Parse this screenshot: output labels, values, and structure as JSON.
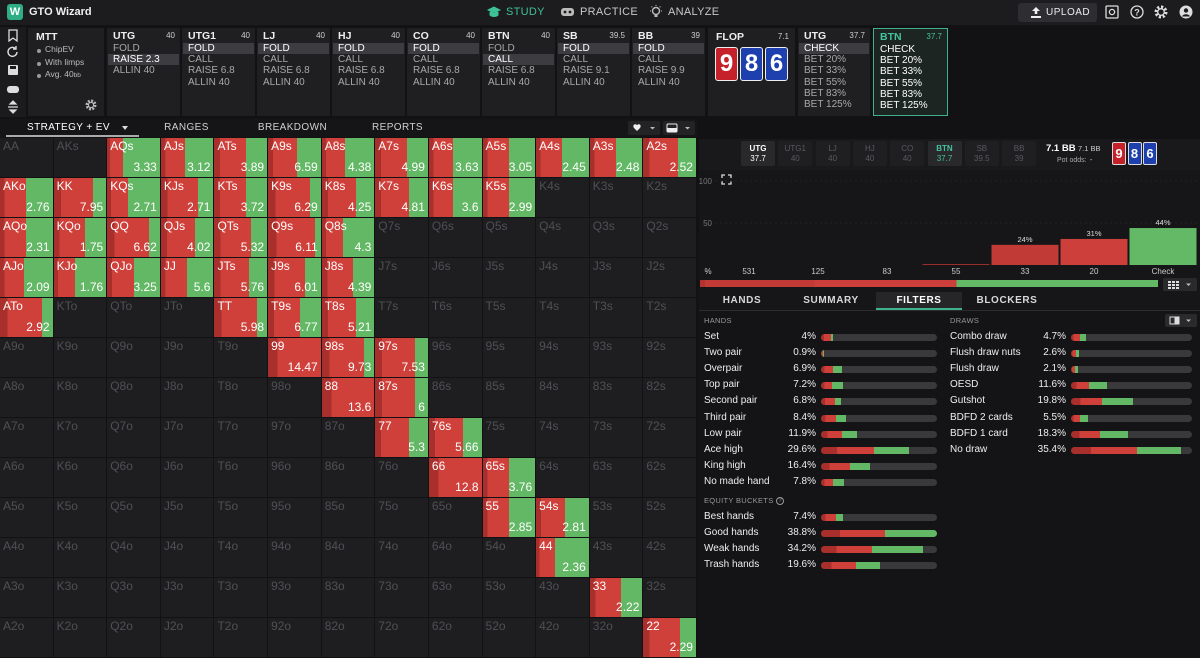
{
  "header": {
    "logo": "GTO Wizard",
    "nav": [
      "STUDY",
      "PRACTICE",
      "ANALYZE"
    ],
    "nav_active": 0,
    "upload": "UPLOAD"
  },
  "settings": {
    "title": "MTT",
    "items": [
      "ChipEV",
      "With limps"
    ],
    "avg": {
      "label": "Avg. 40",
      "unit": "bb"
    }
  },
  "preflop": [
    {
      "name": "UTG",
      "stack": 40,
      "actions": [
        "FOLD",
        "RAISE 2.3",
        "ALLIN 40"
      ],
      "selected": 1
    },
    {
      "name": "UTG1",
      "stack": 40,
      "actions": [
        "FOLD",
        "CALL",
        "RAISE 6.8",
        "ALLIN 40"
      ],
      "selected": 0
    },
    {
      "name": "LJ",
      "stack": 40,
      "actions": [
        "FOLD",
        "CALL",
        "RAISE 6.8",
        "ALLIN 40"
      ],
      "selected": 0
    },
    {
      "name": "HJ",
      "stack": 40,
      "actions": [
        "FOLD",
        "CALL",
        "RAISE 6.8",
        "ALLIN 40"
      ],
      "selected": 0
    },
    {
      "name": "CO",
      "stack": 40,
      "actions": [
        "FOLD",
        "CALL",
        "RAISE 6.8",
        "ALLIN 40"
      ],
      "selected": 0
    },
    {
      "name": "BTN",
      "stack": 40,
      "actions": [
        "FOLD",
        "CALL",
        "RAISE 6.8",
        "ALLIN 40"
      ],
      "selected": 1
    },
    {
      "name": "SB",
      "stack": 39.5,
      "actions": [
        "FOLD",
        "CALL",
        "RAISE 9.1",
        "ALLIN 40"
      ],
      "selected": 0
    },
    {
      "name": "BB",
      "stack": 39,
      "actions": [
        "FOLD",
        "CALL",
        "RAISE 9.9",
        "ALLIN 40"
      ],
      "selected": 0
    }
  ],
  "flop": {
    "name": "FLOP",
    "pot": 7.1,
    "cards": [
      {
        "rank": "9",
        "color": "#c4212b"
      },
      {
        "rank": "8",
        "color": "#1e3fae"
      },
      {
        "rank": "6",
        "color": "#1e3fae"
      }
    ]
  },
  "postflop": [
    {
      "name": "UTG",
      "stack": 37.7,
      "actions": [
        "CHECK",
        "BET 20%",
        "BET 33%",
        "BET 55%",
        "BET 83%",
        "BET 125%"
      ],
      "selected": 0
    },
    {
      "name": "BTN",
      "stack": 37.7,
      "actions": [
        "CHECK",
        "BET 20%",
        "BET 33%",
        "BET 55%",
        "BET 83%",
        "BET 125%"
      ],
      "selected": -1,
      "active": true
    }
  ],
  "tabs": [
    "STRATEGY + EV",
    "RANGES",
    "BREAKDOWN",
    "REPORTS"
  ],
  "tab_active": 0,
  "grid": [
    [
      {
        "hand": "AA"
      },
      {
        "hand": "AKs"
      },
      {
        "hand": "AQs",
        "ev": 3.33,
        "check": 70
      },
      {
        "hand": "AJs",
        "ev": 3.12,
        "check": 55
      },
      {
        "hand": "ATs",
        "ev": 3.89,
        "check": 40
      },
      {
        "hand": "A9s",
        "ev": 6.59,
        "check": 45
      },
      {
        "hand": "A8s",
        "ev": 4.38,
        "check": 55
      },
      {
        "hand": "A7s",
        "ev": 4.99,
        "check": 40
      },
      {
        "hand": "A6s",
        "ev": 3.63,
        "check": 55
      },
      {
        "hand": "A5s",
        "ev": 3.05,
        "check": 50
      },
      {
        "hand": "A4s",
        "ev": 2.45,
        "check": 50
      },
      {
        "hand": "A3s",
        "ev": 2.48,
        "check": 50
      },
      {
        "hand": "A2s",
        "ev": 2.52,
        "check": 35
      }
    ],
    [
      {
        "hand": "AKo",
        "ev": 2.76,
        "check": 50
      },
      {
        "hand": "KK",
        "ev": 7.95,
        "check": 25
      },
      {
        "hand": "KQs",
        "ev": 2.71,
        "check": 60
      },
      {
        "hand": "KJs",
        "ev": 2.71,
        "check": 30
      },
      {
        "hand": "KTs",
        "ev": 3.72,
        "check": 40
      },
      {
        "hand": "K9s",
        "ev": 6.29,
        "check": 20
      },
      {
        "hand": "K8s",
        "ev": 4.25,
        "check": 35
      },
      {
        "hand": "K7s",
        "ev": 4.81,
        "check": 35
      },
      {
        "hand": "K6s",
        "ev": 3.6,
        "check": 55
      },
      {
        "hand": "K5s",
        "ev": 2.99,
        "check": 50
      },
      {
        "hand": "K4s"
      },
      {
        "hand": "K3s"
      },
      {
        "hand": "K2s"
      }
    ],
    [
      {
        "hand": "AQo",
        "ev": 2.31,
        "check": 50
      },
      {
        "hand": "KQo",
        "ev": 1.75,
        "check": 40
      },
      {
        "hand": "QQ",
        "ev": 6.62,
        "check": 20
      },
      {
        "hand": "QJs",
        "ev": 4.02,
        "check": 35
      },
      {
        "hand": "QTs",
        "ev": 5.32,
        "check": 30
      },
      {
        "hand": "Q9s",
        "ev": 6.11,
        "check": 10
      },
      {
        "hand": "Q8s",
        "ev": 4.3,
        "check": 60
      },
      {
        "hand": "Q7s"
      },
      {
        "hand": "Q6s"
      },
      {
        "hand": "Q5s"
      },
      {
        "hand": "Q4s"
      },
      {
        "hand": "Q3s"
      },
      {
        "hand": "Q2s"
      }
    ],
    [
      {
        "hand": "AJo",
        "ev": 2.09,
        "check": 55
      },
      {
        "hand": "KJo",
        "ev": 1.76,
        "check": 60
      },
      {
        "hand": "QJo",
        "ev": 3.25,
        "check": 50
      },
      {
        "hand": "JJ",
        "ev": 5.6,
        "check": 50
      },
      {
        "hand": "JTs",
        "ev": 5.76,
        "check": 35
      },
      {
        "hand": "J9s",
        "ev": 6.01,
        "check": 30
      },
      {
        "hand": "J8s",
        "ev": 4.39,
        "check": 40
      },
      {
        "hand": "J7s"
      },
      {
        "hand": "J6s"
      },
      {
        "hand": "J5s"
      },
      {
        "hand": "J4s"
      },
      {
        "hand": "J3s"
      },
      {
        "hand": "J2s"
      }
    ],
    [
      {
        "hand": "ATo",
        "ev": 2.92,
        "check": 20
      },
      {
        "hand": "KTo"
      },
      {
        "hand": "QTo"
      },
      {
        "hand": "JTo"
      },
      {
        "hand": "TT",
        "ev": 5.98,
        "check": 20
      },
      {
        "hand": "T9s",
        "ev": 6.77,
        "check": 40
      },
      {
        "hand": "T8s",
        "ev": 5.21,
        "check": 35
      },
      {
        "hand": "T7s"
      },
      {
        "hand": "T6s"
      },
      {
        "hand": "T5s"
      },
      {
        "hand": "T4s"
      },
      {
        "hand": "T3s"
      },
      {
        "hand": "T2s"
      }
    ],
    [
      {
        "hand": "A9o"
      },
      {
        "hand": "K9o"
      },
      {
        "hand": "Q9o"
      },
      {
        "hand": "J9o"
      },
      {
        "hand": "T9o"
      },
      {
        "hand": "99",
        "ev": 14.47,
        "check": 0
      },
      {
        "hand": "98s",
        "ev": 9.73,
        "check": 20
      },
      {
        "hand": "97s",
        "ev": 7.53,
        "check": 25
      },
      {
        "hand": "96s"
      },
      {
        "hand": "95s"
      },
      {
        "hand": "94s"
      },
      {
        "hand": "93s"
      },
      {
        "hand": "92s"
      }
    ],
    [
      {
        "hand": "A8o"
      },
      {
        "hand": "K8o"
      },
      {
        "hand": "Q8o"
      },
      {
        "hand": "J8o"
      },
      {
        "hand": "T8o"
      },
      {
        "hand": "98o"
      },
      {
        "hand": "88",
        "ev": 13.6,
        "check": 0
      },
      {
        "hand": "87s",
        "ev": 6,
        "check": 25
      },
      {
        "hand": "86s"
      },
      {
        "hand": "85s"
      },
      {
        "hand": "84s"
      },
      {
        "hand": "83s"
      },
      {
        "hand": "82s"
      }
    ],
    [
      {
        "hand": "A7o"
      },
      {
        "hand": "K7o"
      },
      {
        "hand": "Q7o"
      },
      {
        "hand": "J7o"
      },
      {
        "hand": "T7o"
      },
      {
        "hand": "97o"
      },
      {
        "hand": "87o"
      },
      {
        "hand": "77",
        "ev": 5.3,
        "check": 35
      },
      {
        "hand": "76s",
        "ev": 5.66,
        "check": 35
      },
      {
        "hand": "75s"
      },
      {
        "hand": "74s"
      },
      {
        "hand": "73s"
      },
      {
        "hand": "72s"
      }
    ],
    [
      {
        "hand": "A6o"
      },
      {
        "hand": "K6o"
      },
      {
        "hand": "Q6o"
      },
      {
        "hand": "J6o"
      },
      {
        "hand": "T6o"
      },
      {
        "hand": "96o"
      },
      {
        "hand": "86o"
      },
      {
        "hand": "76o"
      },
      {
        "hand": "66",
        "ev": 12.8,
        "check": 0
      },
      {
        "hand": "65s",
        "ev": 3.76,
        "check": 50
      },
      {
        "hand": "64s"
      },
      {
        "hand": "63s"
      },
      {
        "hand": "62s"
      }
    ],
    [
      {
        "hand": "A5o"
      },
      {
        "hand": "K5o"
      },
      {
        "hand": "Q5o"
      },
      {
        "hand": "J5o"
      },
      {
        "hand": "T5o"
      },
      {
        "hand": "95o"
      },
      {
        "hand": "85o"
      },
      {
        "hand": "75o"
      },
      {
        "hand": "65o"
      },
      {
        "hand": "55",
        "ev": 2.85,
        "check": 50
      },
      {
        "hand": "54s",
        "ev": 2.81,
        "check": 45
      },
      {
        "hand": "53s"
      },
      {
        "hand": "52s"
      }
    ],
    [
      {
        "hand": "A4o"
      },
      {
        "hand": "K4o"
      },
      {
        "hand": "Q4o"
      },
      {
        "hand": "J4o"
      },
      {
        "hand": "T4o"
      },
      {
        "hand": "94o"
      },
      {
        "hand": "84o"
      },
      {
        "hand": "74o"
      },
      {
        "hand": "64o"
      },
      {
        "hand": "54o"
      },
      {
        "hand": "44",
        "ev": 2.36,
        "check": 65
      },
      {
        "hand": "43s"
      },
      {
        "hand": "42s"
      }
    ],
    [
      {
        "hand": "A3o"
      },
      {
        "hand": "K3o"
      },
      {
        "hand": "Q3o"
      },
      {
        "hand": "J3o"
      },
      {
        "hand": "T3o"
      },
      {
        "hand": "93o"
      },
      {
        "hand": "83o"
      },
      {
        "hand": "73o"
      },
      {
        "hand": "63o"
      },
      {
        "hand": "53o"
      },
      {
        "hand": "43o"
      },
      {
        "hand": "33",
        "ev": 2.22,
        "check": 40
      },
      {
        "hand": "32s"
      }
    ],
    [
      {
        "hand": "A2o"
      },
      {
        "hand": "K2o"
      },
      {
        "hand": "Q2o"
      },
      {
        "hand": "J2o"
      },
      {
        "hand": "T2o"
      },
      {
        "hand": "92o"
      },
      {
        "hand": "82o"
      },
      {
        "hand": "72o"
      },
      {
        "hand": "62o"
      },
      {
        "hand": "52o"
      },
      {
        "hand": "42o"
      },
      {
        "hand": "32o"
      },
      {
        "hand": "22",
        "ev": 2.29,
        "check": 30
      }
    ]
  ],
  "strip": {
    "players": [
      {
        "name": "UTG",
        "stack": 37.7,
        "state": "in"
      },
      {
        "name": "UTG1",
        "stack": 40,
        "state": "folded"
      },
      {
        "name": "LJ",
        "stack": 40,
        "state": "folded"
      },
      {
        "name": "HJ",
        "stack": 40,
        "state": "folded"
      },
      {
        "name": "CO",
        "stack": 40,
        "state": "folded"
      },
      {
        "name": "BTN",
        "stack": 37.7,
        "state": "to_act"
      },
      {
        "name": "SB",
        "stack": 39.5,
        "state": "folded"
      },
      {
        "name": "BB",
        "stack": 39,
        "state": "folded"
      }
    ],
    "pot": "7.1 BB",
    "pot_small": "7.1 BB",
    "pot_odds_label": "Pot odds:",
    "pot_odds": "-"
  },
  "chart_data": {
    "type": "bar",
    "x_label": "%",
    "categories": [
      "531",
      "125",
      "83",
      "55",
      "33",
      "20",
      "Check"
    ],
    "values": [
      0,
      0,
      0,
      1,
      24,
      31,
      44
    ],
    "value_labels": [
      null,
      null,
      null,
      null,
      "24%",
      "31%",
      "44%"
    ],
    "colors": [
      "#7d1f1c",
      "#8f2622",
      "#a02b27",
      "#b1322e",
      "#c13a36",
      "#cc3f3a",
      "#63b965"
    ],
    "ylim": [
      0,
      100
    ],
    "yticks": [
      50,
      100
    ]
  },
  "filter_tabs": [
    "HANDS",
    "SUMMARY",
    "FILTERS",
    "BLOCKERS"
  ],
  "filter_active": 2,
  "filters": {
    "hands": {
      "title": "HANDS",
      "rows": [
        {
          "label": "Set",
          "value": 4,
          "value_label": "4%",
          "bet": 80
        },
        {
          "label": "Two pair",
          "value": 0.9,
          "value_label": "0.9%",
          "bet": 90
        },
        {
          "label": "Overpair",
          "value": 6.9,
          "value_label": "6.9%",
          "bet": 60
        },
        {
          "label": "Top pair",
          "value": 7.2,
          "value_label": "7.2%",
          "bet": 50
        },
        {
          "label": "Second pair",
          "value": 6.8,
          "value_label": "6.8%",
          "bet": 70
        },
        {
          "label": "Third pair",
          "value": 8.4,
          "value_label": "8.4%",
          "bet": 60
        },
        {
          "label": "Low pair",
          "value": 11.9,
          "value_label": "11.9%",
          "bet": 60
        },
        {
          "label": "Ace high",
          "value": 29.6,
          "value_label": "29.6%",
          "bet": 60
        },
        {
          "label": "King high",
          "value": 16.4,
          "value_label": "16.4%",
          "bet": 60
        },
        {
          "label": "No made hand",
          "value": 7.8,
          "value_label": "7.8%",
          "bet": 50
        }
      ]
    },
    "equity": {
      "title": "EQUITY BUCKETS",
      "rows": [
        {
          "label": "Best hands",
          "value": 7.4,
          "value_label": "7.4%",
          "bet": 70
        },
        {
          "label": "Good hands",
          "value": 38.8,
          "value_label": "38.8%",
          "bet": 55
        },
        {
          "label": "Weak hands",
          "value": 34.2,
          "value_label": "34.2%",
          "bet": 50
        },
        {
          "label": "Trash hands",
          "value": 19.6,
          "value_label": "19.6%",
          "bet": 60
        }
      ]
    },
    "draws": {
      "title": "DRAWS",
      "rows": [
        {
          "label": "Combo draw",
          "value": 4.7,
          "value_label": "4.7%",
          "bet": 60
        },
        {
          "label": "Flush draw nuts",
          "value": 2.6,
          "value_label": "2.6%",
          "bet": 60
        },
        {
          "label": "Flush draw",
          "value": 2.1,
          "value_label": "2.1%",
          "bet": 60
        },
        {
          "label": "OESD",
          "value": 11.6,
          "value_label": "11.6%",
          "bet": 50
        },
        {
          "label": "Gutshot",
          "value": 19.8,
          "value_label": "19.8%",
          "bet": 50
        },
        {
          "label": "BDFD 2 cards",
          "value": 5.5,
          "value_label": "5.5%",
          "bet": 55
        },
        {
          "label": "BDFD 1 card",
          "value": 18.3,
          "value_label": "18.3%",
          "bet": 50
        },
        {
          "label": "No draw",
          "value": 35.4,
          "value_label": "35.4%",
          "bet": 60
        }
      ]
    }
  }
}
